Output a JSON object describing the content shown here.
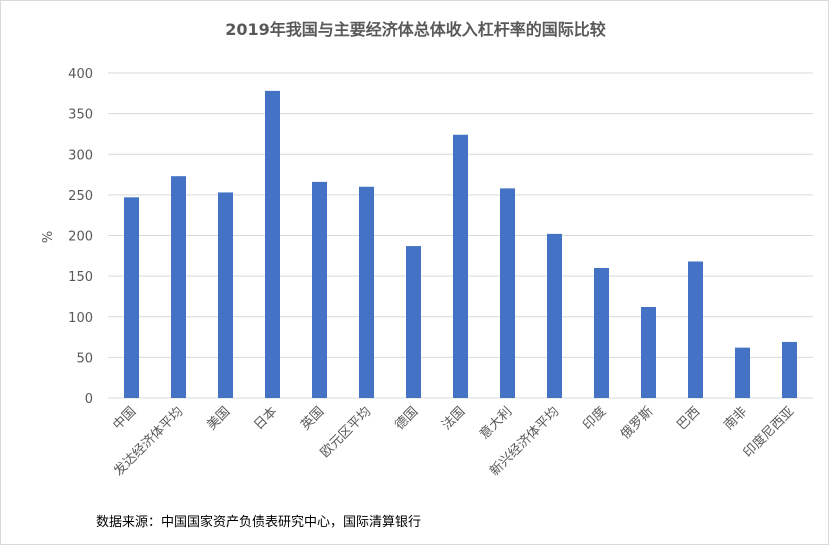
{
  "chart_data": {
    "type": "bar",
    "title": "2019年我国与主要经济体总体收入杠杆率的国际比较",
    "ylabel": "%",
    "xlabel": "",
    "ylim": [
      0,
      400
    ],
    "yticks": [
      0,
      50,
      100,
      150,
      200,
      250,
      300,
      350,
      400
    ],
    "grid": true,
    "bar_color": "#4472C4",
    "categories": [
      "中国",
      "发达经济体平均",
      "美国",
      "日本",
      "英国",
      "欧元区平均",
      "德国",
      "法国",
      "意大利",
      "新兴经济体平均",
      "印度",
      "俄罗斯",
      "巴西",
      "南非",
      "印度尼西亚"
    ],
    "values": [
      247,
      273,
      253,
      378,
      266,
      260,
      187,
      324,
      258,
      202,
      160,
      112,
      168,
      62,
      69
    ]
  },
  "footer": {
    "source": "数据来源：中国国家资产负债表研究中心，国际清算银行"
  }
}
